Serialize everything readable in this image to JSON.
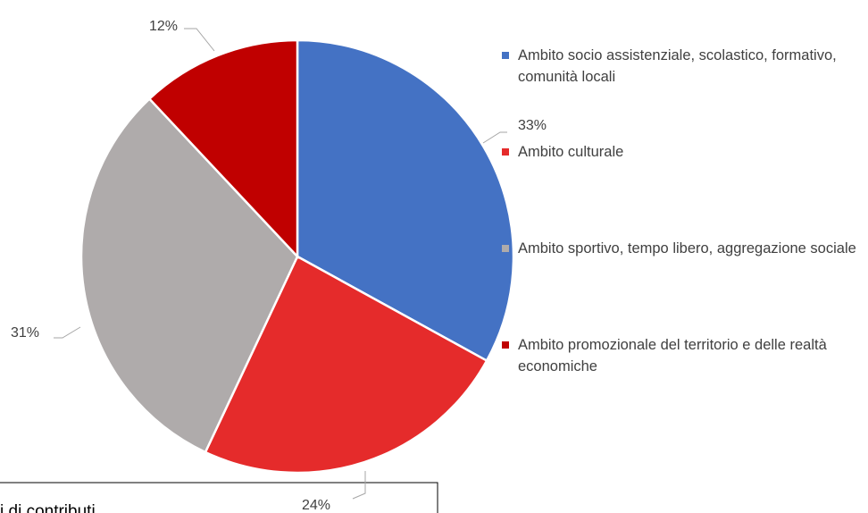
{
  "chart_data": {
    "type": "pie",
    "categories": [
      "Ambito socio assistenziale, scolastico, formativo, comunità locali",
      "Ambito culturale",
      "Ambito sportivo, tempo libero, aggregazione sociale",
      "Ambito promozionale del territorio e delle realtà economiche"
    ],
    "values": [
      33,
      24,
      31,
      12
    ],
    "value_labels": [
      "33%",
      "24%",
      "31%",
      "12%"
    ],
    "colors": [
      "#4472c4",
      "#e52b2b",
      "#afabab",
      "#c00000"
    ],
    "legend": "right",
    "annotation": "i di contributi"
  }
}
